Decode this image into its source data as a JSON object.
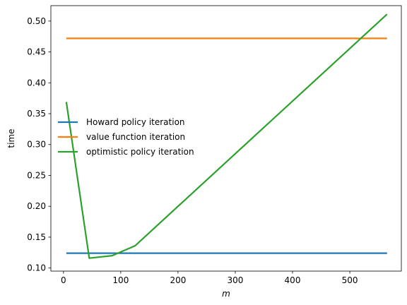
{
  "chart_data": {
    "type": "line",
    "title": "",
    "xlabel": "m",
    "ylabel": "time",
    "xlim": [
      -22,
      590
    ],
    "ylim": [
      0.095,
      0.525
    ],
    "xticks": [
      0,
      100,
      200,
      300,
      400,
      500
    ],
    "yticks": [
      0.1,
      0.15,
      0.2,
      0.25,
      0.3,
      0.35,
      0.4,
      0.45,
      0.5
    ],
    "ytick_labels": [
      "0.10",
      "0.15",
      "0.20",
      "0.25",
      "0.30",
      "0.35",
      "0.40",
      "0.45",
      "0.50"
    ],
    "grid": false,
    "legend_position": "center-left",
    "series": [
      {
        "name": "Howard policy iteration",
        "color": "#1f77b4",
        "x": [
          5,
          565
        ],
        "y": [
          0.124,
          0.124
        ]
      },
      {
        "name": "value function iteration",
        "color": "#ff7f0e",
        "x": [
          5,
          565
        ],
        "y": [
          0.472,
          0.472
        ]
      },
      {
        "name": "optimistic policy iteration",
        "color": "#2ca02c",
        "x": [
          5,
          45,
          85,
          125,
          565
        ],
        "y": [
          0.369,
          0.116,
          0.12,
          0.136,
          0.511
        ]
      }
    ]
  }
}
